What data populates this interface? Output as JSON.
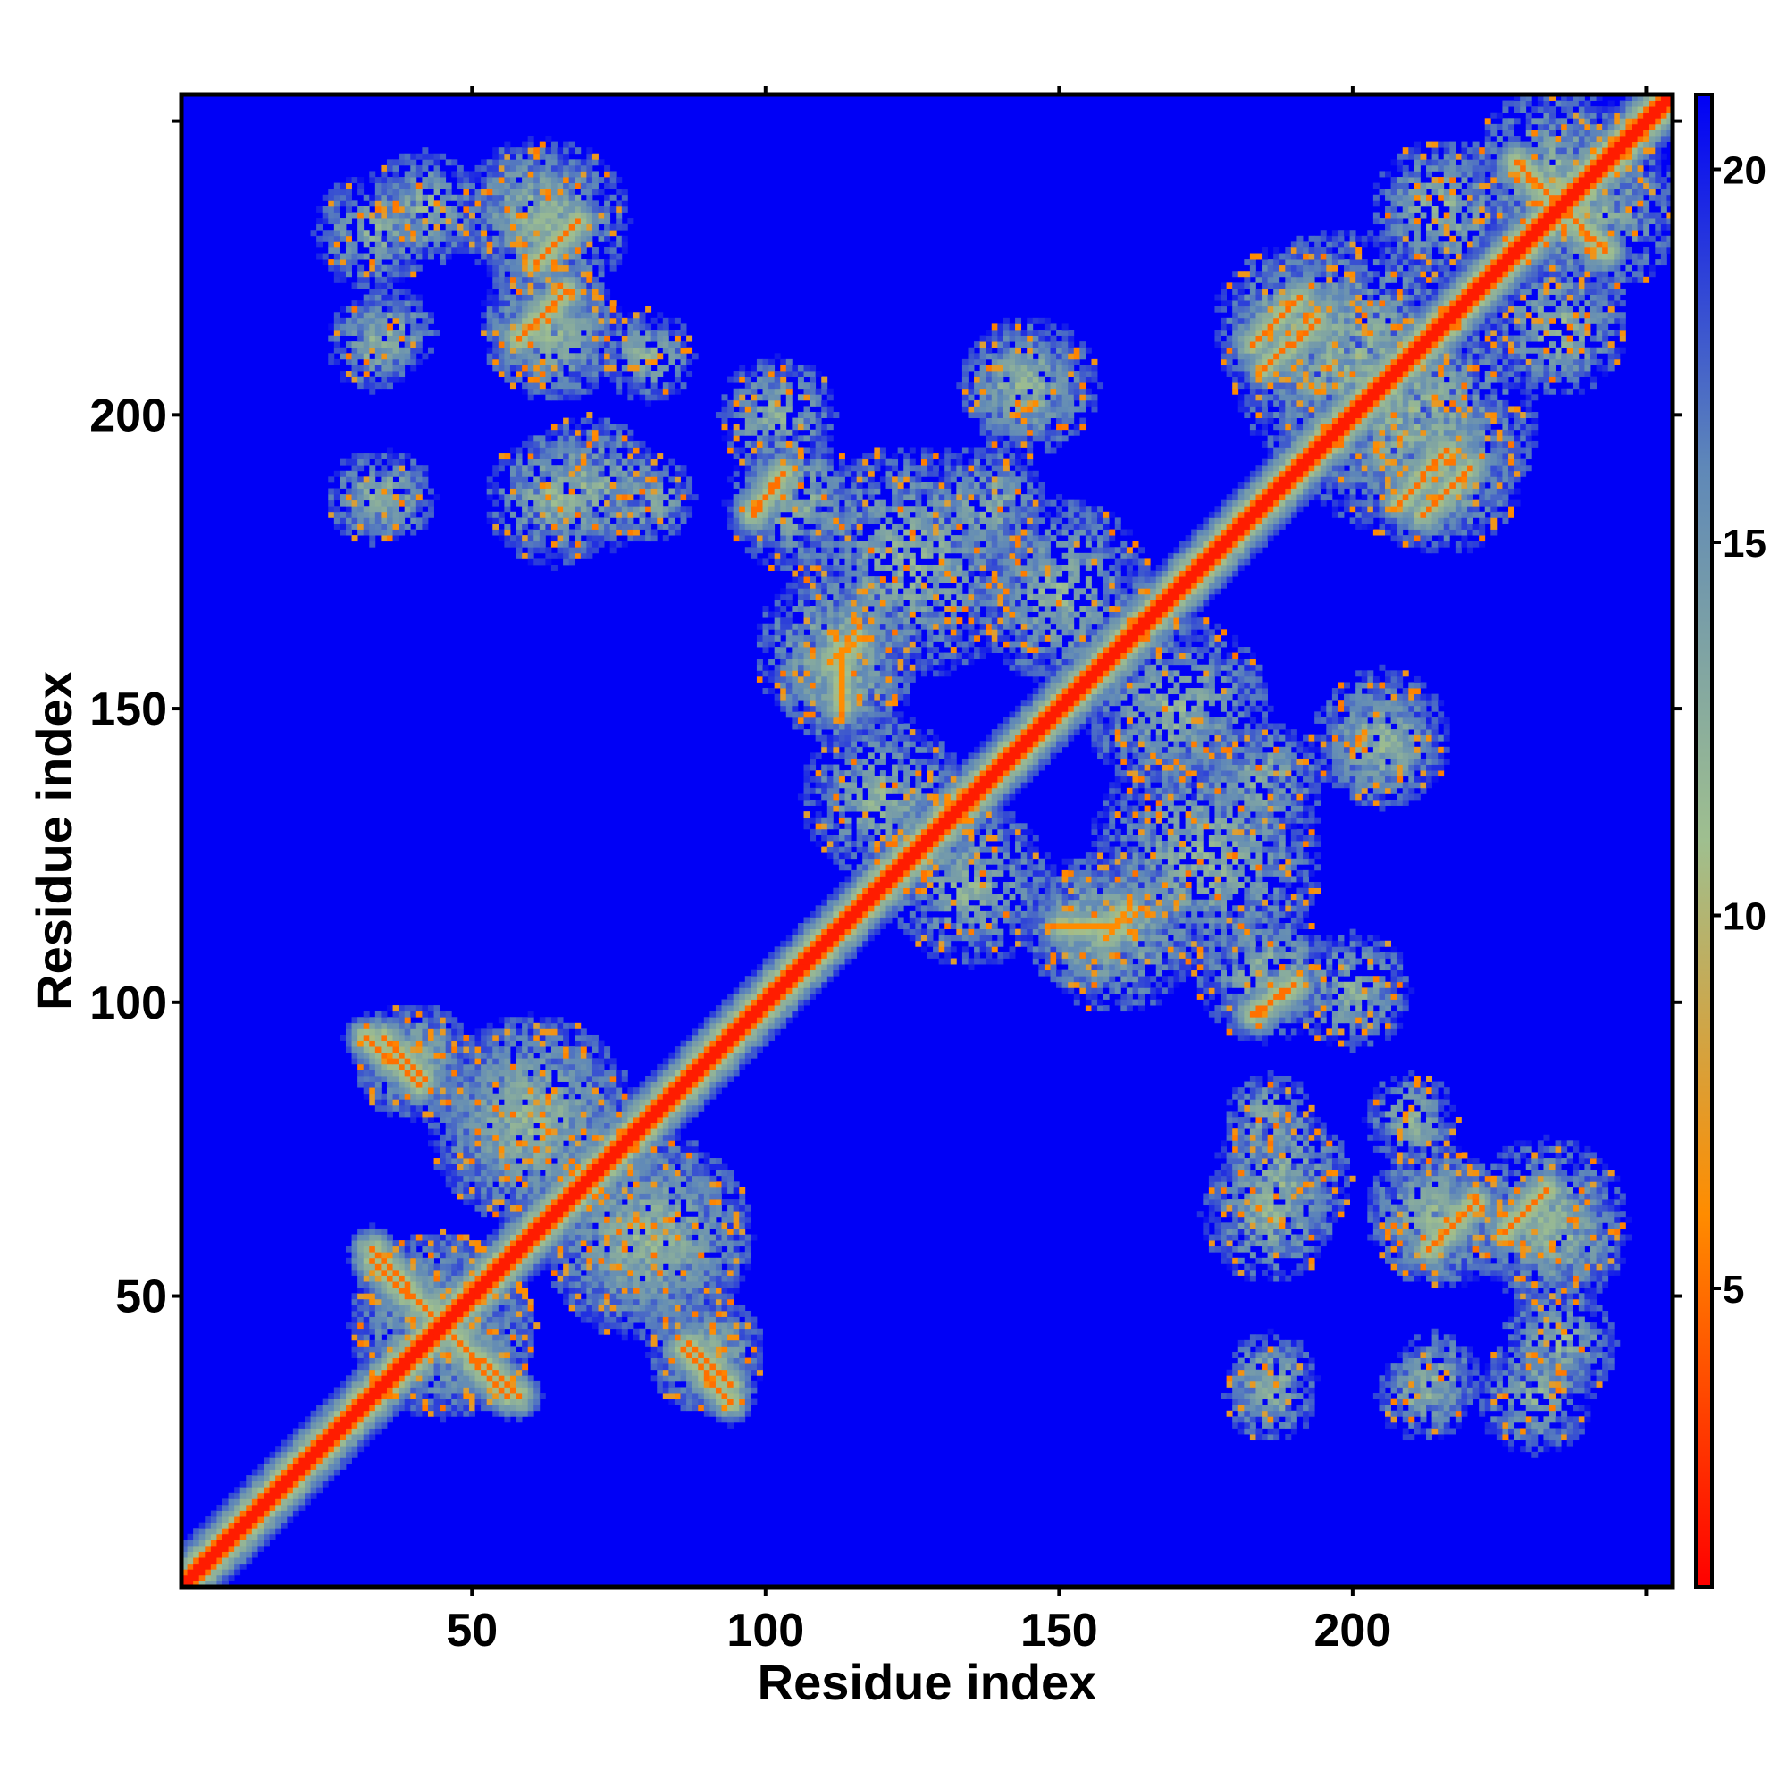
{
  "chart_data": {
    "type": "heatmap",
    "xlabel": "Residue index",
    "ylabel": "Residue index",
    "x_range": [
      1,
      254
    ],
    "y_range": [
      1,
      254
    ],
    "x_ticks": [
      50,
      100,
      150,
      200
    ],
    "y_ticks": [
      50,
      100,
      150,
      200
    ],
    "colorbar": {
      "ticks": [
        5,
        10,
        15,
        20
      ],
      "range": [
        1,
        21
      ],
      "colors": [
        "#ff0000",
        "#ff8c00",
        "#9fbf8f",
        "#5f88b8",
        "#0000f6"
      ]
    },
    "background_value": 21,
    "diagonal": {
      "from": 1,
      "to": 254,
      "value": 2
    },
    "contact_features": [
      {
        "kind": "antiparallel",
        "start": [
          33,
          56
        ],
        "end": [
          58,
          33
        ],
        "value": 5
      },
      {
        "kind": "antiparallel",
        "start": [
          32,
          94
        ],
        "end": [
          41,
          86
        ],
        "value": 5
      },
      {
        "kind": "antiparallel",
        "start": [
          87,
          42
        ],
        "end": [
          94,
          35
        ],
        "value": 5
      },
      {
        "kind": "parallel",
        "start": [
          58,
          213
        ],
        "end": [
          66,
          221
        ],
        "value": 5
      },
      {
        "kind": "parallel",
        "start": [
          61,
          226
        ],
        "end": [
          68,
          233
        ],
        "value": 5
      },
      {
        "kind": "antiparallel",
        "start": [
          228,
          243
        ],
        "end": [
          243,
          228
        ],
        "value": 5
      },
      {
        "kind": "parallel",
        "start": [
          185,
          208
        ],
        "end": [
          194,
          216
        ],
        "value": 5
      },
      {
        "kind": "parallel",
        "start": [
          98,
          184
        ],
        "end": [
          103,
          190
        ],
        "value": 5
      },
      {
        "kind": "parallel",
        "start": [
          183,
          98
        ],
        "end": [
          190,
          103
        ],
        "value": 5
      },
      {
        "kind": "parallel",
        "start": [
          212,
          183
        ],
        "end": [
          220,
          191
        ],
        "value": 5
      },
      {
        "kind": "parallel",
        "start": [
          213,
          58
        ],
        "end": [
          221,
          66
        ],
        "value": 5
      },
      {
        "kind": "parallel",
        "start": [
          226,
          61
        ],
        "end": [
          233,
          68
        ],
        "value": 5
      },
      {
        "kind": "parallel",
        "start": [
          111,
          158
        ],
        "end": [
          116,
          162
        ],
        "value": 6
      },
      {
        "kind": "parallel",
        "start": [
          150,
          113
        ],
        "end": [
          160,
          113
        ],
        "value": 6
      }
    ],
    "contact_clusters": [
      {
        "center": [
          33,
          231
        ],
        "radius": 10
      },
      {
        "center": [
          33,
          212
        ],
        "radius": 8
      },
      {
        "center": [
          33,
          186
        ],
        "radius": 8
      },
      {
        "center": [
          63,
          233
        ],
        "radius": 14
      },
      {
        "center": [
          63,
          215
        ],
        "radius": 12
      },
      {
        "center": [
          70,
          188
        ],
        "radius": 12
      },
      {
        "center": [
          102,
          200
        ],
        "radius": 10
      },
      {
        "center": [
          143,
          205
        ],
        "radius": 10
      },
      {
        "center": [
          138,
          185
        ],
        "radius": 10
      },
      {
        "center": [
          112,
          160
        ],
        "radius": 14
      },
      {
        "center": [
          120,
          135
        ],
        "radius": 14
      },
      {
        "center": [
          175,
          125
        ],
        "radius": 20
      },
      {
        "center": [
          170,
          150
        ],
        "radius": 16
      },
      {
        "center": [
          200,
          210
        ],
        "radius": 22
      },
      {
        "center": [
          215,
          190
        ],
        "radius": 14
      },
      {
        "center": [
          235,
          215
        ],
        "radius": 12
      },
      {
        "center": [
          240,
          235
        ],
        "radius": 16
      },
      {
        "center": [
          205,
          145
        ],
        "radius": 12
      },
      {
        "center": [
          185,
          105
        ],
        "radius": 12
      },
      {
        "center": [
          155,
          113
        ],
        "radius": 12
      },
      {
        "center": [
          60,
          80
        ],
        "radius": 18
      },
      {
        "center": [
          45,
          45
        ],
        "radius": 16
      },
      {
        "center": [
          80,
          60
        ],
        "radius": 18
      },
      {
        "center": [
          90,
          40
        ],
        "radius": 10
      },
      {
        "center": [
          40,
          90
        ],
        "radius": 10
      },
      {
        "center": [
          186,
          64
        ],
        "radius": 12
      },
      {
        "center": [
          186,
          36
        ],
        "radius": 8
      },
      {
        "center": [
          214,
          64
        ],
        "radius": 12
      },
      {
        "center": [
          214,
          36
        ],
        "radius": 8
      },
      {
        "center": [
          235,
          60
        ],
        "radius": 12
      },
      {
        "center": [
          235,
          42
        ],
        "radius": 10
      },
      {
        "center": [
          186,
          80
        ],
        "radius": 8
      },
      {
        "center": [
          210,
          80
        ],
        "radius": 8
      }
    ]
  }
}
